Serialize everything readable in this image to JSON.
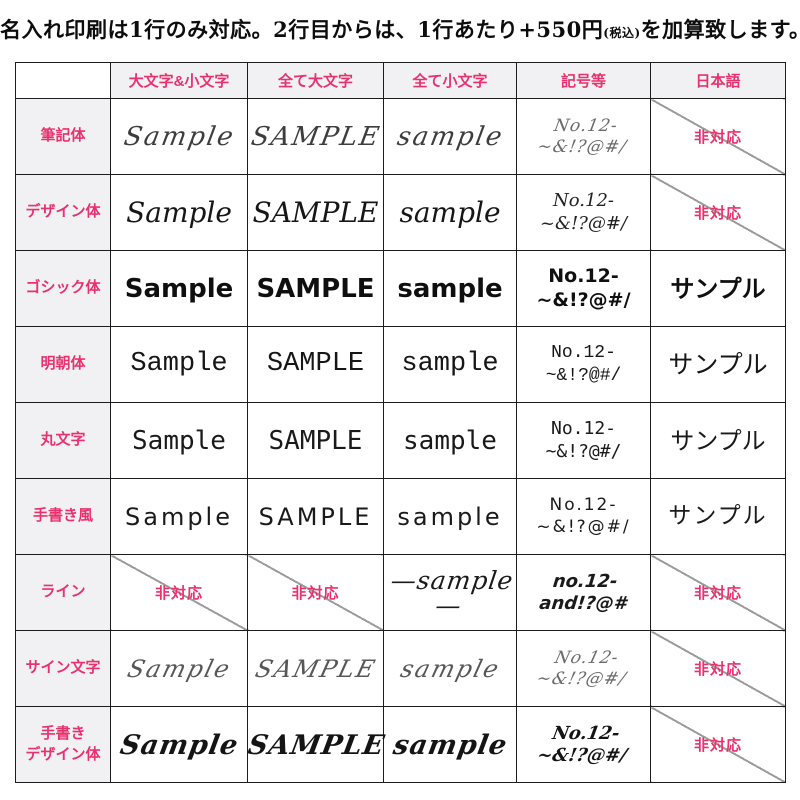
{
  "notice": {
    "before": "名入れ印刷は1行のみ対応。2行目からは、1行あたり+550円",
    "small": "(税込)",
    "after": "を加算致します。"
  },
  "table": {
    "na_label": "非対応",
    "columns": [
      "",
      "大文字&小文字",
      "全て大文字",
      "全て小文字",
      "記号等",
      "日本語"
    ],
    "rows": [
      {
        "label": "筆記体",
        "style": "script",
        "mixed": "Sample",
        "upper": "SAMPLE",
        "lower": "sample",
        "symbols": [
          "No.12-",
          "~&!?@#/"
        ],
        "japanese": {
          "na": true
        }
      },
      {
        "label": "デザイン体",
        "style": "design",
        "mixed": "Sample",
        "upper": "SAMPLE",
        "lower": "sample",
        "symbols": [
          "No.12-",
          "~&!?@#/"
        ],
        "japanese": {
          "na": true
        }
      },
      {
        "label": "ゴシック体",
        "style": "gothic",
        "mixed": "Sample",
        "upper": "SAMPLE",
        "lower": "sample",
        "symbols": [
          "No.12-",
          "~&!?@#/"
        ],
        "japanese": "サンプル"
      },
      {
        "label": "明朝体",
        "style": "mincho",
        "mixed": "Sample",
        "upper": "SAMPLE",
        "lower": "sample",
        "symbols": [
          "No.12-",
          "~&!?@#/"
        ],
        "japanese": "サンプル"
      },
      {
        "label": "丸文字",
        "style": "maru",
        "mixed": "Sample",
        "upper": "SAMPLE",
        "lower": "sample",
        "symbols": [
          "No.12-",
          "~&!?@#/"
        ],
        "japanese": "サンプル"
      },
      {
        "label": "手書き風",
        "style": "tegaki",
        "mixed": "Sample",
        "upper": "SAMPLE",
        "lower": "sample",
        "symbols": [
          "No.12-",
          "~&!?@#/"
        ],
        "japanese": "サンプル"
      },
      {
        "label": "ライン",
        "style": "line",
        "mixed": {
          "na": true
        },
        "upper": {
          "na": true
        },
        "lower": "—sample—",
        "symbols": [
          "no.12-",
          "and!?@#"
        ],
        "japanese": {
          "na": true
        }
      },
      {
        "label": "サイン文字",
        "style": "sign",
        "mixed": "Sample",
        "upper": "SAMPLE",
        "lower": "sample",
        "symbols": [
          "No.12-",
          "~&!?@#/"
        ],
        "japanese": {
          "na": true
        }
      },
      {
        "label": "手書き\nデザイン体",
        "style": "brush",
        "mixed": "Sample",
        "upper": "SAMPLE",
        "lower": "sample",
        "symbols": [
          "No.12-",
          "~&!?@#/"
        ],
        "japanese": {
          "na": true
        }
      }
    ]
  },
  "colors": {
    "accent": "#e8326d",
    "grid": "#1c1c1c",
    "header_bg": "#f1f1f3",
    "diagonal": "#9b9b9b"
  }
}
